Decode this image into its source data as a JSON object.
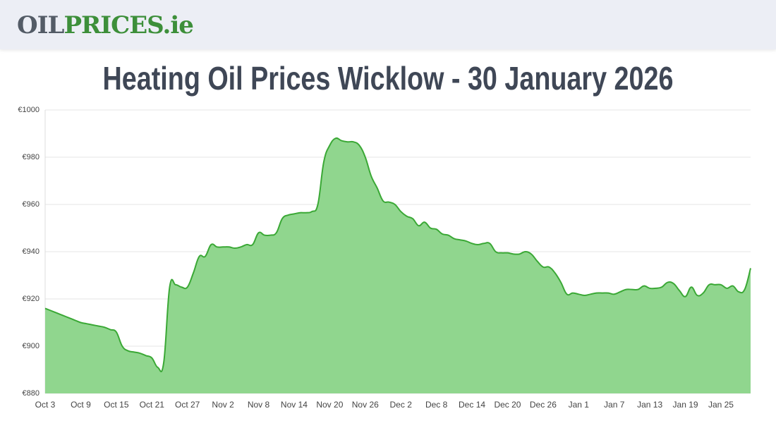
{
  "header": {
    "logo_dark": "OIL",
    "logo_green": "PRICES.ie"
  },
  "chart_data": {
    "type": "area",
    "title": "Heating Oil Prices Wicklow - 30 January 2026",
    "categories": [
      "Oct 3",
      null,
      null,
      null,
      null,
      null,
      "Oct 9",
      null,
      null,
      null,
      null,
      null,
      "Oct 15",
      null,
      null,
      null,
      null,
      null,
      "Oct 21",
      null,
      null,
      null,
      null,
      null,
      "Oct 27",
      null,
      null,
      null,
      null,
      null,
      "Nov 2",
      null,
      null,
      null,
      null,
      null,
      "Nov 8",
      null,
      null,
      null,
      null,
      null,
      "Nov 14",
      null,
      null,
      null,
      null,
      null,
      "Nov 20",
      null,
      null,
      null,
      null,
      null,
      "Nov 26",
      null,
      null,
      null,
      null,
      null,
      "Dec 2",
      null,
      null,
      null,
      null,
      null,
      "Dec 8",
      null,
      null,
      null,
      null,
      null,
      "Dec 14",
      null,
      null,
      null,
      null,
      null,
      "Dec 20",
      null,
      null,
      null,
      null,
      null,
      "Dec 26",
      null,
      null,
      null,
      null,
      null,
      "Jan 1",
      null,
      null,
      null,
      null,
      null,
      "Jan 7",
      null,
      null,
      null,
      null,
      null,
      "Jan 13",
      null,
      null,
      null,
      null,
      null,
      "Jan 19",
      null,
      null,
      null,
      null,
      null,
      "Jan 25",
      null,
      null,
      null,
      null,
      null
    ],
    "values": [
      916,
      915,
      914,
      913,
      912,
      911,
      910,
      909.5,
      909,
      908.5,
      908,
      907,
      906,
      900,
      898,
      897.5,
      897,
      896,
      895,
      891,
      893,
      925,
      926,
      925,
      925,
      931,
      938,
      938,
      943,
      942,
      942,
      942,
      941.5,
      942,
      943,
      943,
      948,
      947,
      947,
      948,
      954,
      955.5,
      956,
      956.5,
      956.5,
      957,
      960,
      978,
      985,
      988,
      987,
      986.5,
      986.5,
      985,
      980,
      972,
      967,
      961.5,
      961,
      960,
      957,
      955,
      954,
      951,
      952.5,
      950,
      949.5,
      947.5,
      947,
      945.5,
      945,
      944.5,
      943.5,
      943,
      943.5,
      943.5,
      940,
      939.5,
      939.5,
      939,
      939,
      940,
      939,
      936,
      933.5,
      933.5,
      931,
      927,
      922,
      922.5,
      922,
      921.5,
      922,
      922.5,
      922.5,
      922.5,
      922,
      923,
      924,
      924,
      924,
      925.5,
      924.5,
      924.5,
      925,
      927,
      926.5,
      923.5,
      921,
      925,
      921.5,
      922.5,
      926,
      926,
      926,
      924.5,
      925.5,
      923,
      924,
      933
    ],
    "line_color": "#3aa835",
    "fill_color": "#90d68e",
    "ylim": [
      880,
      1000
    ],
    "yticks": [
      {
        "value": 880,
        "label": "€880"
      },
      {
        "value": 900,
        "label": "€900"
      },
      {
        "value": 920,
        "label": "€920"
      },
      {
        "value": 940,
        "label": "€940"
      },
      {
        "value": 960,
        "label": "€960"
      },
      {
        "value": 980,
        "label": "€980"
      },
      {
        "value": 1000,
        "label": "€1000"
      }
    ],
    "grid": true
  }
}
